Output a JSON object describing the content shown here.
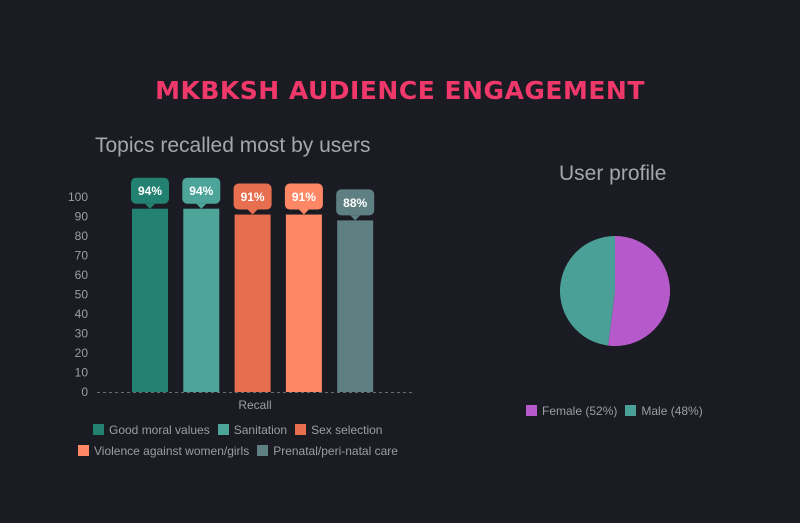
{
  "page": {
    "title": "MKBKSH AUDIENCE ENGAGEMENT"
  },
  "chart_data": [
    {
      "type": "bar",
      "title": "Topics recalled most by users",
      "xlabel": "Recall",
      "ylabel": "",
      "ylim": [
        0,
        100
      ],
      "yticks": [
        0,
        10,
        20,
        30,
        40,
        50,
        60,
        70,
        80,
        90,
        100
      ],
      "categories": [
        "Recall"
      ],
      "grid": false,
      "legend_position": "bottom",
      "series": [
        {
          "name": "Good moral values",
          "values": [
            94
          ],
          "label": "94%",
          "color": "#228170"
        },
        {
          "name": "Sanitation",
          "values": [
            94
          ],
          "label": "94%",
          "color": "#4da59a"
        },
        {
          "name": "Sex selection",
          "values": [
            91
          ],
          "label": "91%",
          "color": "#e76e4f"
        },
        {
          "name": "Violence against women/girls",
          "values": [
            91
          ],
          "label": "91%",
          "color": "#fe8866"
        },
        {
          "name": "Prenatal/peri-natal care",
          "values": [
            88
          ],
          "label": "88%",
          "color": "#5f8082"
        }
      ]
    },
    {
      "type": "pie",
      "title": "User profile",
      "legend_position": "bottom",
      "slices": [
        {
          "label": "Female (52%)",
          "value": 52,
          "color": "#b65acb"
        },
        {
          "label": "Male (48%)",
          "value": 48,
          "color": "#4a9f97"
        }
      ]
    }
  ]
}
